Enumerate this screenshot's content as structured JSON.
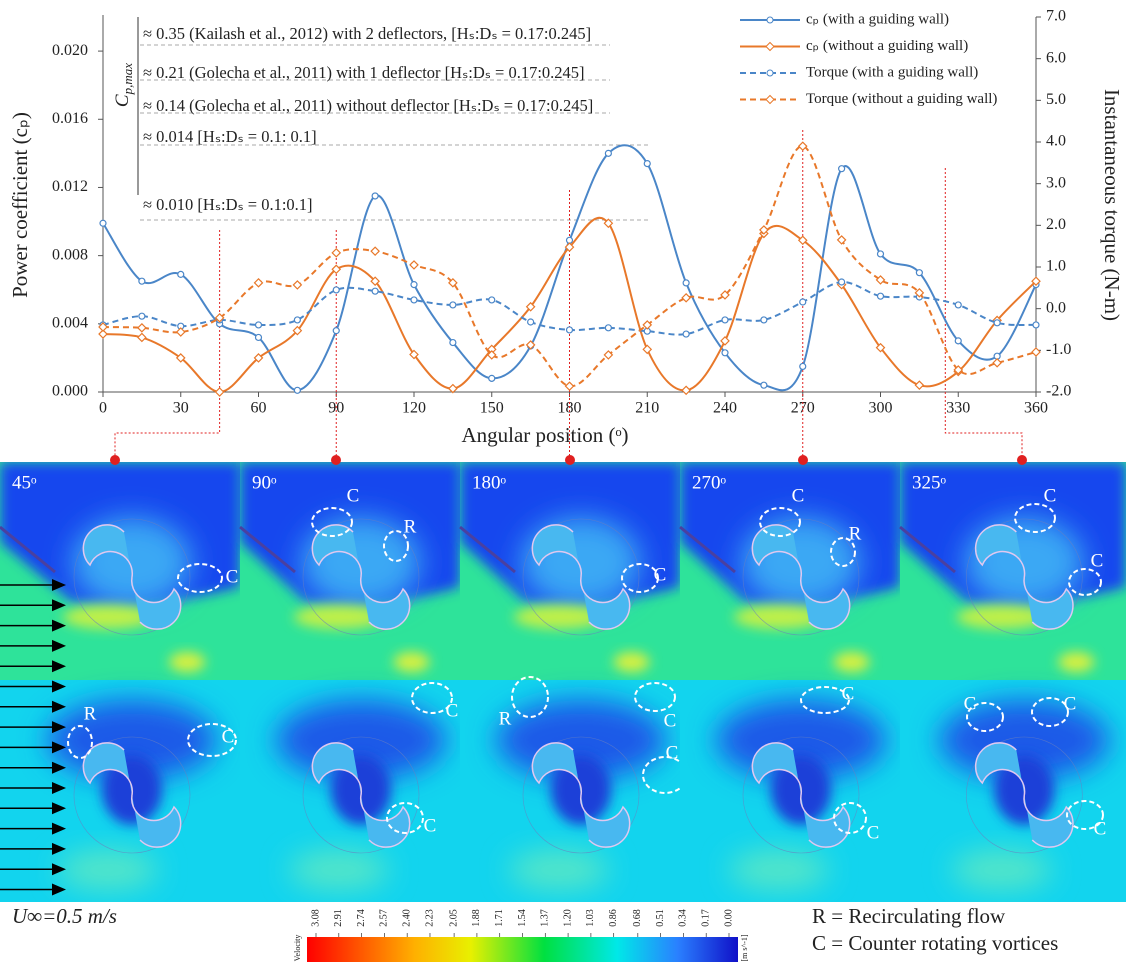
{
  "chart_data": {
    "type": "line",
    "x_label": "Angular position (ᵒ)",
    "y_label": "Power coefficient (cₚ)",
    "y2_label": "Instantaneous torque (N-m)",
    "x": [
      0,
      15,
      30,
      45,
      60,
      75,
      90,
      105,
      120,
      135,
      150,
      165,
      180,
      195,
      210,
      225,
      240,
      255,
      270,
      285,
      300,
      315,
      330,
      345,
      360
    ],
    "xlim": [
      0,
      360
    ],
    "xticks": [
      0,
      30,
      60,
      90,
      120,
      150,
      180,
      210,
      240,
      270,
      300,
      330,
      360
    ],
    "ylim": [
      0,
      0.022
    ],
    "yticks": [
      {
        "value": 0,
        "label": "0.000"
      },
      0.004,
      0.008,
      0.012,
      0.016,
      {
        "value": 0.02,
        "label": "0.020"
      }
    ],
    "y2lim": [
      -2,
      7
    ],
    "y2ticks": [
      {
        "value": -2,
        "label": "-2.0"
      },
      {
        "value": -1,
        "label": "-1.0"
      },
      {
        "value": 0,
        "label": "0.0"
      },
      {
        "value": 1,
        "label": "1.0"
      },
      {
        "value": 2,
        "label": "2.0"
      },
      {
        "value": 3,
        "label": "3.0"
      },
      {
        "value": 4,
        "label": "4.0"
      },
      {
        "value": 5,
        "label": "5.0"
      },
      {
        "value": 6,
        "label": "6.0"
      },
      {
        "value": 7,
        "label": "7.0"
      }
    ],
    "legend": "upper right",
    "series": [
      {
        "name": "cₚ (with a guiding wall)",
        "color": "#4a86c8",
        "line_style": "solid",
        "marker": "circle",
        "axis": "y",
        "values": [
          0.0099,
          0.0065,
          0.0069,
          0.004,
          0.0032,
          0.0001,
          0.0036,
          0.0115,
          0.0063,
          0.0029,
          0.0008,
          0.0027,
          0.0089,
          0.014,
          0.0134,
          0.0064,
          0.0023,
          0.0004,
          0.0015,
          0.0131,
          0.0081,
          0.007,
          0.003,
          0.0021,
          0.0063
        ]
      },
      {
        "name": "cₚ (without a guiding wall)",
        "color": "#e8782a",
        "line_style": "solid",
        "marker": "diamond",
        "axis": "y",
        "values": [
          0.0034,
          0.0032,
          0.002,
          0.0,
          0.002,
          0.0036,
          0.0072,
          0.0065,
          0.0022,
          0.0002,
          0.0025,
          0.005,
          0.0085,
          0.0099,
          0.0025,
          0.0001,
          0.003,
          0.0093,
          0.0089,
          0.0063,
          0.0026,
          0.0004,
          0.0012,
          0.0042,
          0.0065
        ]
      },
      {
        "name": "Torque (with a guiding wall)",
        "color": "#4a86c8",
        "line_style": "dashed",
        "marker": "circle",
        "axis": "y2",
        "values": [
          -0.39,
          -0.18,
          -0.42,
          -0.27,
          -0.39,
          -0.27,
          0.45,
          0.42,
          0.21,
          0.09,
          0.21,
          -0.32,
          -0.51,
          -0.46,
          -0.54,
          -0.61,
          -0.27,
          -0.27,
          0.16,
          0.64,
          0.3,
          0.28,
          0.09,
          -0.34,
          -0.39
        ]
      },
      {
        "name": "Torque (without a guiding wall)",
        "color": "#e8782a",
        "line_style": "dashed",
        "marker": "diamond",
        "axis": "y2",
        "values": [
          -0.44,
          -0.46,
          -0.56,
          -0.22,
          0.62,
          0.57,
          1.34,
          1.38,
          1.05,
          0.62,
          -1.11,
          -0.87,
          -1.86,
          -1.11,
          -0.39,
          0.26,
          0.33,
          1.89,
          3.9,
          1.65,
          0.69,
          0.38,
          -1.47,
          -1.3,
          -1.04
        ]
      }
    ],
    "cp_max_label": {
      "text": "C",
      "subscript": "p,max"
    },
    "reference_notes": [
      "≈ 0.35 (Kailash et al., 2012) with 2 deflectors, [Hₛ:Dₛ = 0.17:0.245]",
      "≈ 0.21 (Golecha et al., 2011) with 1 deflector [Hₛ:Dₛ = 0.17:0.245]",
      "≈ 0.14 (Golecha et al., 2011) without deflector [Hₛ:Dₛ = 0.17:0.245]",
      "≈ 0.014 [Hₛ:Dₛ = 0.1: 0.1]",
      "≈ 0.010 [Hₛ:Dₛ = 0.1:0.1]"
    ],
    "highlight_angles": [
      45,
      90,
      180,
      270,
      325
    ]
  },
  "flow_panels": [
    {
      "label": "45ᵒ",
      "top_marks": [
        "C"
      ],
      "bottom_marks": [
        "R",
        "C"
      ]
    },
    {
      "label": "90ᵒ",
      "top_marks": [
        "C",
        "R"
      ],
      "bottom_marks": [
        "C",
        "C"
      ]
    },
    {
      "label": "180ᵒ",
      "top_marks": [
        "C"
      ],
      "bottom_marks": [
        "R",
        "C",
        "C"
      ]
    },
    {
      "label": "270ᵒ",
      "top_marks": [
        "C",
        "R"
      ],
      "bottom_marks": [
        "C",
        "C"
      ]
    },
    {
      "label": "325ᵒ",
      "top_marks": [
        "C",
        "C"
      ],
      "bottom_marks": [
        "C",
        "C",
        "C"
      ]
    }
  ],
  "colorbar": {
    "title": "Velocity",
    "unit": "[m s^-1]",
    "clim": [
      0,
      3.08
    ],
    "ticks": [
      3.08,
      2.91,
      2.74,
      2.57,
      {
        "value": 2.4,
        "label": "2.40"
      },
      2.23,
      2.05,
      1.88,
      1.71,
      1.54,
      1.37,
      {
        "value": 1.2,
        "label": "1.20"
      },
      1.03,
      0.86,
      0.68,
      0.51,
      0.34,
      0.17,
      {
        "value": 0,
        "label": "0.00"
      }
    ]
  },
  "footnotes": {
    "inflow": "U∞=0.5 m/s",
    "legend_r": "R = Recirculating flow",
    "legend_c": "C = Counter rotating vortices"
  }
}
